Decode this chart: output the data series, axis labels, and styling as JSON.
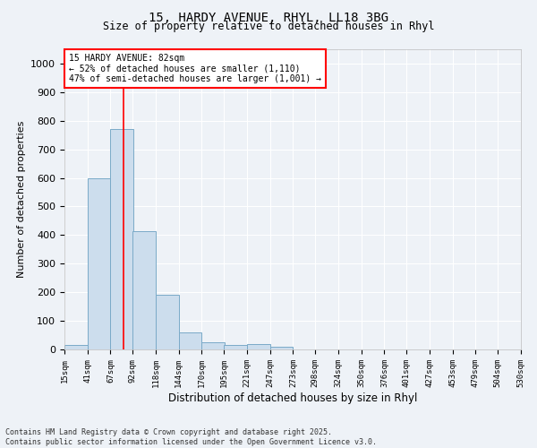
{
  "title_line1": "15, HARDY AVENUE, RHYL, LL18 3BG",
  "title_line2": "Size of property relative to detached houses in Rhyl",
  "xlabel": "Distribution of detached houses by size in Rhyl",
  "ylabel": "Number of detached properties",
  "bar_color": "#ccdded",
  "bar_edge_color": "#7aaac8",
  "background_color": "#eef2f7",
  "grid_color": "#ffffff",
  "vline_x": 82,
  "vline_color": "red",
  "annotation_text": "15 HARDY AVENUE: 82sqm\n← 52% of detached houses are smaller (1,110)\n47% of semi-detached houses are larger (1,001) →",
  "annotation_box_color": "white",
  "annotation_box_edge_color": "red",
  "bins_left": [
    15,
    41,
    67,
    92,
    118,
    144,
    170,
    195,
    221,
    247,
    273,
    298,
    324,
    350,
    376,
    401,
    427,
    453,
    479,
    504
  ],
  "bin_width": 26,
  "values": [
    15,
    600,
    770,
    415,
    190,
    60,
    25,
    15,
    20,
    10,
    0,
    0,
    0,
    0,
    0,
    0,
    0,
    0,
    0,
    0
  ],
  "ylim": [
    0,
    1050
  ],
  "yticks": [
    0,
    100,
    200,
    300,
    400,
    500,
    600,
    700,
    800,
    900,
    1000
  ],
  "tick_labels": [
    "15sqm",
    "41sqm",
    "67sqm",
    "92sqm",
    "118sqm",
    "144sqm",
    "170sqm",
    "195sqm",
    "221sqm",
    "247sqm",
    "273sqm",
    "298sqm",
    "324sqm",
    "350sqm",
    "376sqm",
    "401sqm",
    "427sqm",
    "453sqm",
    "479sqm",
    "504sqm",
    "530sqm"
  ],
  "footnote": "Contains HM Land Registry data © Crown copyright and database right 2025.\nContains public sector information licensed under the Open Government Licence v3.0.",
  "figsize": [
    6.0,
    5.0
  ],
  "dpi": 100
}
